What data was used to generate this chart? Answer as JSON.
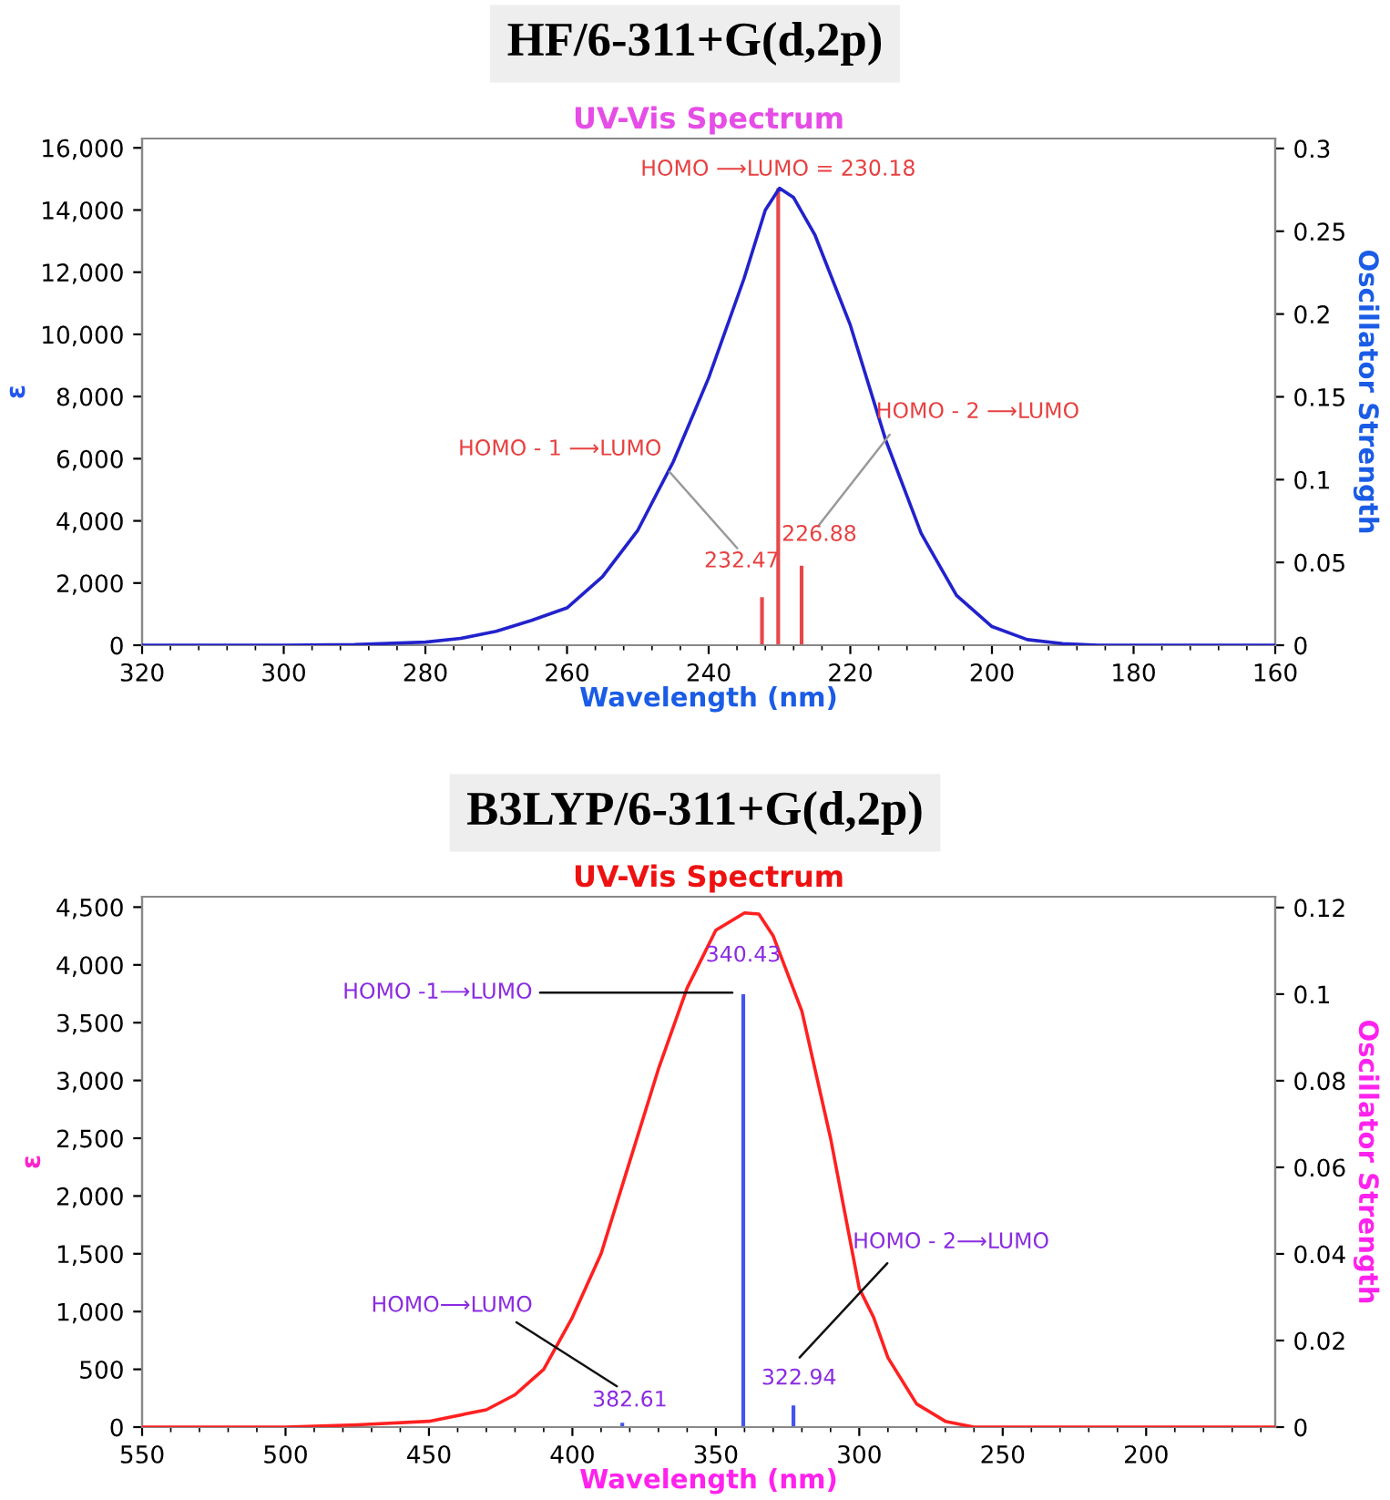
{
  "chart_data": [
    {
      "type": "line",
      "title": "HF/6-311+G(d,2p)",
      "subtitle": "UV-Vis Spectrum",
      "xlabel": "Wavelength (nm)",
      "ylabel": "ε",
      "y2label": "Oscillator Strength",
      "xlim": [
        320,
        160
      ],
      "xticks": [
        320,
        300,
        280,
        260,
        240,
        220,
        200,
        180,
        160
      ],
      "ylim": [
        0,
        16300
      ],
      "yticks": [
        0,
        {
          "value": 2000,
          "label": "2,000"
        },
        {
          "value": 4000,
          "label": "4,000"
        },
        {
          "value": 6000,
          "label": "6,000"
        },
        {
          "value": 8000,
          "label": "8,000"
        },
        {
          "value": 10000,
          "label": "10,000"
        },
        {
          "value": 12000,
          "label": "12,000"
        },
        {
          "value": 14000,
          "label": "14,000"
        },
        {
          "value": 16000,
          "label": "16,000"
        }
      ],
      "y2lim": [
        0,
        0.306
      ],
      "y2ticks": [
        0,
        0.05,
        0.1,
        0.15,
        0.2,
        0.25,
        0.3
      ],
      "series": [
        {
          "color": "#2222cc",
          "x": [
            320,
            300,
            290,
            280,
            275,
            270,
            265,
            260,
            255,
            250,
            245,
            240,
            235,
            232,
            230,
            228,
            225,
            220,
            215,
            210,
            205,
            200,
            195,
            190,
            185,
            180,
            160
          ],
          "values": [
            0,
            0,
            20,
            100,
            220,
            450,
            800,
            1200,
            2200,
            3700,
            5900,
            8600,
            11800,
            14000,
            14700,
            14400,
            13200,
            10300,
            6600,
            3600,
            1600,
            600,
            180,
            50,
            0,
            0,
            0
          ]
        },
        {
          "type": "bar",
          "axis": "y2",
          "color": "#e8474a",
          "x": [
            232.47,
            230.18,
            226.88
          ],
          "values": [
            0.029,
            0.276,
            0.048
          ]
        }
      ],
      "annotations": [
        "HOMO ⟶LUMO = 230.18",
        "HOMO - 1 ⟶LUMO",
        "HOMO - 2 ⟶LUMO",
        {
          "text": "232.47",
          "x": 232.47,
          "y": 1545
        },
        {
          "text": "226.88",
          "x": 226.88,
          "y": 2560
        }
      ]
    },
    {
      "type": "line",
      "title": "B3LYP/6-311+G(d,2p)",
      "subtitle": "UV-Vis Spectrum",
      "xlabel": "Wavelength (nm)",
      "ylabel": "ε",
      "y2label": "Oscillator Strength",
      "xlim": [
        550,
        155
      ],
      "xticks": [
        550,
        500,
        450,
        400,
        350,
        300,
        250,
        200
      ],
      "ylim": [
        0,
        4590
      ],
      "yticks": [
        0,
        500,
        {
          "value": 1000,
          "label": "1,000"
        },
        {
          "value": 1500,
          "label": "1,500"
        },
        {
          "value": 2000,
          "label": "2,000"
        },
        {
          "value": 2500,
          "label": "2,500"
        },
        {
          "value": 3000,
          "label": "3,000"
        },
        {
          "value": 3500,
          "label": "3,500"
        },
        {
          "value": 4000,
          "label": "4,000"
        },
        {
          "value": 4500,
          "label": "4,500"
        }
      ],
      "y2lim": [
        0,
        0.1225
      ],
      "y2ticks": [
        0,
        0.02,
        0.04,
        0.06,
        0.08,
        0.1,
        0.12
      ],
      "series": [
        {
          "color": "#ff2020",
          "x": [
            550,
            500,
            475,
            450,
            430,
            420,
            410,
            400,
            390,
            380,
            370,
            360,
            350,
            340,
            335,
            330,
            320,
            310,
            300,
            295,
            290,
            280,
            270,
            260,
            250,
            155
          ],
          "values": [
            0,
            0,
            20,
            50,
            150,
            280,
            500,
            950,
            1500,
            2300,
            3100,
            3800,
            4300,
            4450,
            4440,
            4250,
            3600,
            2500,
            1200,
            950,
            600,
            200,
            50,
            0,
            0,
            0
          ]
        },
        {
          "type": "bar",
          "axis": "y2",
          "color": "#4455ee",
          "x": [
            382.61,
            340.43,
            322.94
          ],
          "values": [
            0.001,
            0.1,
            0.005
          ]
        }
      ],
      "annotations": [
        "HOMO -1⟶LUMO",
        "340.43",
        "HOMO⟶LUMO",
        "382.61",
        "HOMO - 2⟶LUMO",
        "322.94"
      ]
    }
  ]
}
